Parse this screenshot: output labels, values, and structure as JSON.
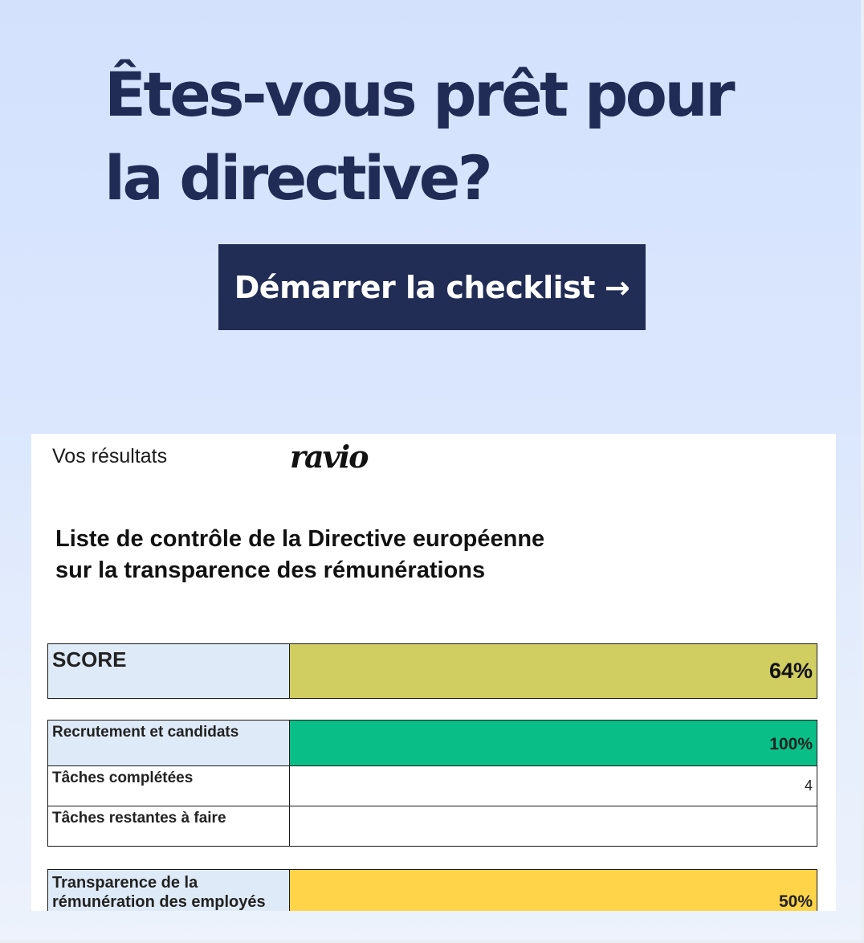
{
  "hero": {
    "title": "Êtes-vous prêt pour la directive?",
    "cta_label": "Démarrer la checklist",
    "cta_arrow": "→"
  },
  "card": {
    "results_label": "Vos résultats",
    "logo_text": "ravio",
    "title_line1": "Liste de contrôle de la Directive européenne",
    "title_line2": "sur la transparence des rémunérations",
    "score": {
      "label": "SCORE",
      "value": "64%",
      "percent": 64,
      "color": "#d0cd61"
    },
    "sections": [
      {
        "label": "Recrutement et candidats",
        "value": "100%",
        "percent": 100,
        "color": "#09bf87",
        "rows": [
          {
            "label": "Tâches complétées",
            "value": "4"
          },
          {
            "label": "Tâches restantes à faire",
            "value": ""
          }
        ]
      },
      {
        "label_line1": "Transparence de la",
        "label_line2": "rémunération des employés",
        "value": "50%",
        "percent": 50,
        "color": "#ffd449"
      }
    ]
  },
  "colors": {
    "navy": "#222d55",
    "title_text": "#202c55",
    "label_cell": "#dfeaf8"
  }
}
